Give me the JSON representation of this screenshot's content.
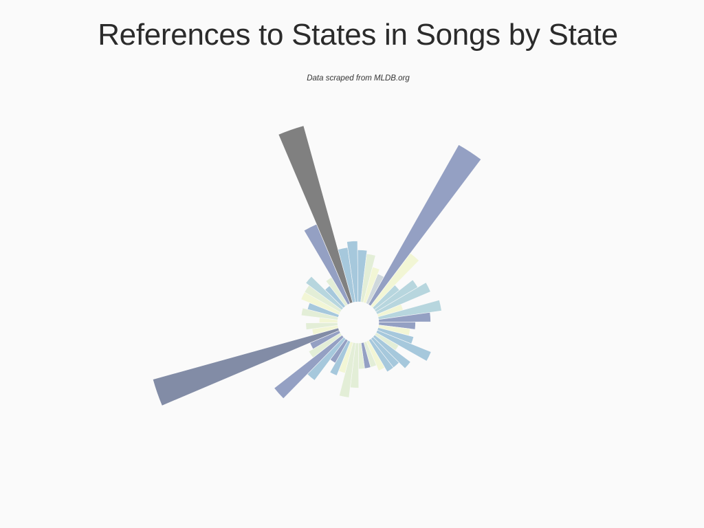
{
  "chart_data": {
    "type": "polar-area",
    "title": "References to States in Songs by State",
    "subtitle": "Data scraped from MLDB.org",
    "colors": [
      "#94a0c3",
      "#b7d6de",
      "#a6c8dc",
      "#e3eed7",
      "#f2f6d5",
      "#808080",
      "#828ca6"
    ],
    "values": [
      3,
      100,
      13,
      3,
      7,
      10,
      2,
      12,
      8,
      4,
      3,
      4,
      10,
      2,
      6,
      4,
      4,
      3,
      2,
      2,
      2,
      6,
      9,
      3,
      4,
      2,
      8,
      22,
      4,
      3,
      110,
      2,
      3,
      1,
      4,
      3,
      5,
      5,
      6,
      2,
      3,
      22,
      100,
      9,
      11,
      8,
      7,
      4
    ],
    "slice_colors": [
      "#cfd8dc",
      "#94a0c3",
      "#f2f6d5",
      "#b7d6de",
      "#b7d6de",
      "#b7d6de",
      "#f2f6d5",
      "#b7d6de",
      "#94a0c3",
      "#94a0c3",
      "#f2f6d5",
      "#a6c8dc",
      "#a6c8dc",
      "#e3eed7",
      "#a6c8dc",
      "#a6c8dc",
      "#a6c8dc",
      "#f2f6d5",
      "#e3eed7",
      "#94a0c3",
      "#e3eed7",
      "#e3eed7",
      "#e3eed7",
      "#f2f6d5",
      "#a6c8dc",
      "#94a0c3",
      "#a6c8dc",
      "#94a0c3",
      "#e3eed7",
      "#94a0c3",
      "#828ca6",
      "#f2f6d5",
      "#e3eed7",
      "#f2f6d5",
      "#e3eed7",
      "#a6c8dc",
      "#f2f6d5",
      "#e3eed7",
      "#b7d6de",
      "#a6c8dc",
      "#e3eed7",
      "#94a0c3",
      "#808080",
      "#a6c8dc",
      "#a6c8dc",
      "#a6c8dc",
      "#e3eed7",
      "#f2f6d5"
    ]
  }
}
